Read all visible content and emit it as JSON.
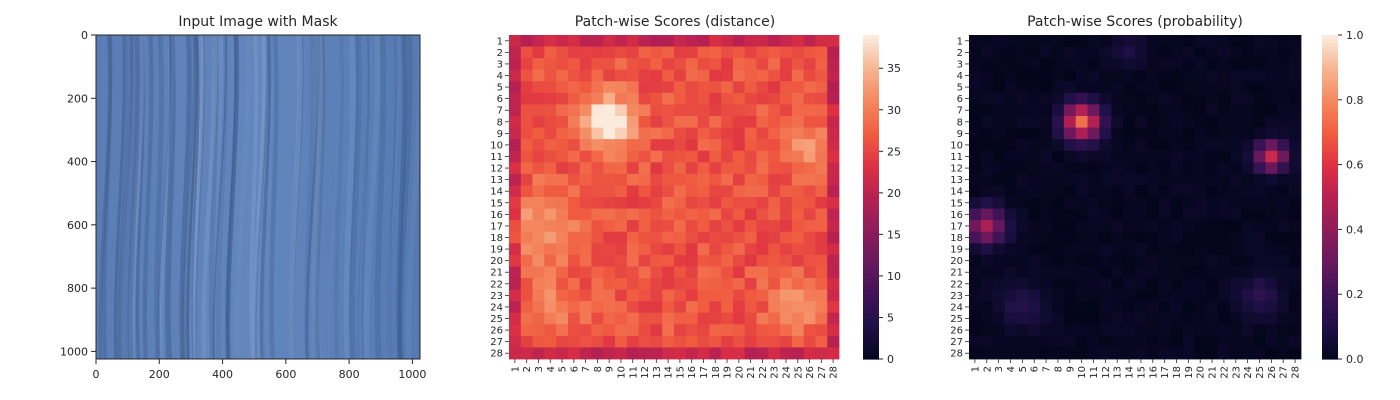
{
  "chart_data": [
    {
      "type": "image",
      "title": "Input Image with Mask",
      "xlim": [
        0,
        1024
      ],
      "ylim": [
        1024,
        0
      ],
      "x_ticks": [
        "0",
        "200",
        "400",
        "600",
        "800",
        "1000"
      ],
      "y_ticks": [
        "0",
        "200",
        "400",
        "600",
        "800",
        "1000"
      ],
      "base_color": "#5b7fb8"
    },
    {
      "type": "heatmap",
      "title": "Patch-wise Scores (distance)",
      "rows": [
        "1",
        "2",
        "3",
        "4",
        "5",
        "6",
        "7",
        "8",
        "9",
        "10",
        "11",
        "12",
        "13",
        "14",
        "15",
        "16",
        "17",
        "18",
        "19",
        "20",
        "21",
        "22",
        "23",
        "24",
        "25",
        "26",
        "27",
        "28"
      ],
      "cols": [
        "1",
        "2",
        "3",
        "4",
        "5",
        "6",
        "7",
        "8",
        "9",
        "10",
        "11",
        "12",
        "13",
        "14",
        "15",
        "16",
        "17",
        "18",
        "19",
        "20",
        "21",
        "22",
        "23",
        "24",
        "25",
        "26",
        "27",
        "28"
      ],
      "colorbar": {
        "min": 0,
        "max": 39,
        "ticks": [
          "0",
          "5",
          "10",
          "15",
          "20",
          "25",
          "30",
          "35"
        ]
      },
      "hotspots": [
        {
          "row": 8,
          "col": 9,
          "value": 39
        },
        {
          "row": 17,
          "col": 3,
          "value": 32
        },
        {
          "row": 10,
          "col": 26,
          "value": 31
        },
        {
          "row": 24,
          "col": 25,
          "value": 31
        },
        {
          "row": 24,
          "col": 4,
          "value": 30
        }
      ],
      "colormap": "rocket"
    },
    {
      "type": "heatmap",
      "title": "Patch-wise Scores (probability)",
      "rows": [
        "1",
        "2",
        "3",
        "4",
        "5",
        "6",
        "7",
        "8",
        "9",
        "10",
        "11",
        "12",
        "13",
        "14",
        "15",
        "16",
        "17",
        "18",
        "19",
        "20",
        "21",
        "22",
        "23",
        "24",
        "25",
        "26",
        "27",
        "28"
      ],
      "cols": [
        "1",
        "2",
        "3",
        "4",
        "5",
        "6",
        "7",
        "8",
        "9",
        "10",
        "11",
        "12",
        "13",
        "14",
        "15",
        "16",
        "17",
        "18",
        "19",
        "20",
        "21",
        "22",
        "23",
        "24",
        "25",
        "26",
        "27",
        "28"
      ],
      "colorbar": {
        "min": 0,
        "max": 1,
        "ticks": [
          "0.0",
          "0.2",
          "0.4",
          "0.6",
          "0.8",
          "1.0"
        ]
      },
      "hotspots": [
        {
          "row": 8,
          "col": 10,
          "value": 0.72
        },
        {
          "row": 11,
          "col": 26,
          "value": 0.55
        },
        {
          "row": 17,
          "col": 2,
          "value": 0.45
        },
        {
          "row": 24,
          "col": 5,
          "value": 0.12
        },
        {
          "row": 23,
          "col": 25,
          "value": 0.12
        }
      ],
      "colormap": "rocket"
    }
  ]
}
